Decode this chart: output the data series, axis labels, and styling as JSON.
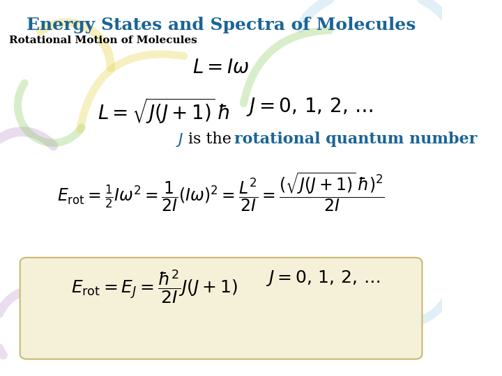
{
  "title": "Energy States and Spectra of Molecules",
  "title_color": "#1a6496",
  "title_fontsize": 18,
  "subtitle": "Rotational Motion of Molecules",
  "subtitle_color": "#000000",
  "subtitle_fontsize": 11,
  "bg_color": "#ffffff",
  "eq1": "L = I\\omega",
  "eq2": "L = \\sqrt{J(J+1)}\\,\\hbar \\qquad J = 0,\\,1,\\,2,\\,\\ldots",
  "eq3_italic": "J",
  "eq3_text": " is the ",
  "eq3_bold": "rotational quantum number",
  "eq4": "E_{\\mathrm{rot}} = \\tfrac{1}{2}I\\omega^2 = \\dfrac{1}{2I}(I\\omega)^2 = \\dfrac{L^2}{2I} = \\dfrac{(\\sqrt{J(J+1)}\\,\\hbar)^2}{2I}",
  "eq5": "E_{\\mathrm{rot}} = E_J = \\dfrac{\\hbar^2}{2I}J(J+1) \\qquad J = 0,\\,1,\\,2,\\,\\ldots",
  "box_color": "#f5f0d8",
  "box_edge_color": "#c8b96e",
  "formula_color": "#000000",
  "j_color": "#1a6496",
  "rotational_color": "#1a6496"
}
